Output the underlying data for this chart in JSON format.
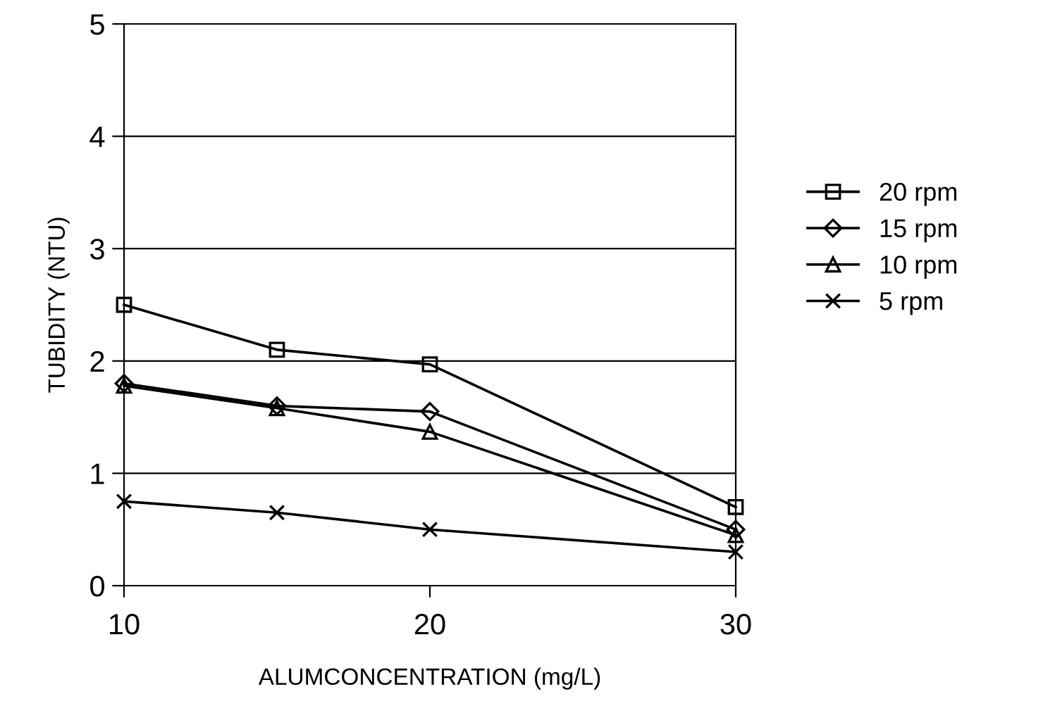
{
  "chart_data": {
    "type": "line",
    "xlabel": "ALUMCONCENTRATION (mg/L)",
    "ylabel": "TUBIDITY (NTU)",
    "x": [
      10,
      15,
      20,
      30
    ],
    "series": [
      {
        "name": "20 rpm",
        "color": "#000000",
        "marker": "square",
        "values": [
          2.5,
          2.1,
          1.97,
          0.7
        ]
      },
      {
        "name": "15 rpm",
        "color": "#000000",
        "marker": "diamond",
        "values": [
          1.8,
          1.6,
          1.55,
          0.5
        ]
      },
      {
        "name": "10 rpm",
        "color": "#000000",
        "marker": "triangle",
        "values": [
          1.78,
          1.58,
          1.37,
          0.45
        ]
      },
      {
        "name": "5 rpm",
        "color": "#000000",
        "marker": "cross",
        "values": [
          0.75,
          0.65,
          0.5,
          0.3
        ]
      }
    ],
    "xlim": [
      10,
      30
    ],
    "xticks": [
      10,
      20,
      30
    ],
    "ylim": [
      0,
      5
    ],
    "yticks": [
      0,
      1,
      2,
      3,
      4,
      5
    ],
    "grid": "y",
    "legend": "right",
    "line_style": "solid"
  }
}
